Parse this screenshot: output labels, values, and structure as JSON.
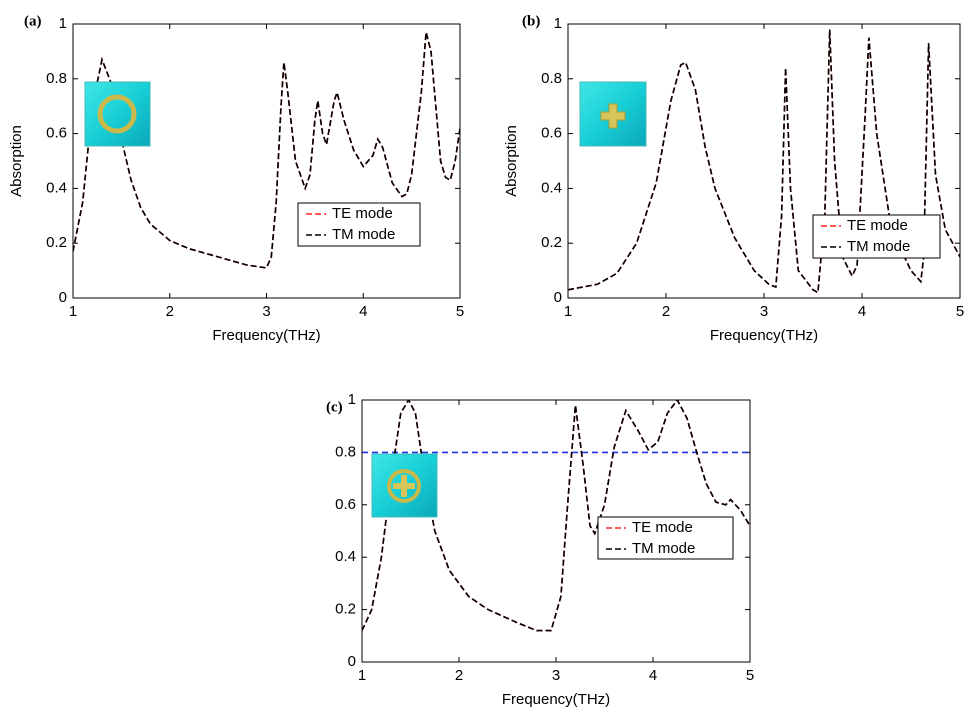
{
  "chart_data": [
    {
      "type": "line",
      "label": "(a)",
      "xlabel": "Frequency(THz)",
      "ylabel": "Absorption",
      "xlim": [
        1,
        5
      ],
      "ylim": [
        0,
        1
      ],
      "xticks": [
        1,
        2,
        3,
        4,
        5
      ],
      "yticks": [
        0,
        0.2,
        0.4,
        0.6,
        0.8,
        1
      ],
      "x": [
        1.0,
        1.1,
        1.2,
        1.3,
        1.4,
        1.5,
        1.6,
        1.7,
        1.8,
        2.0,
        2.2,
        2.5,
        2.8,
        3.0,
        3.05,
        3.1,
        3.15,
        3.18,
        3.22,
        3.3,
        3.4,
        3.45,
        3.5,
        3.53,
        3.58,
        3.62,
        3.7,
        3.73,
        3.8,
        3.9,
        4.0,
        4.1,
        4.15,
        4.2,
        4.3,
        4.4,
        4.45,
        4.5,
        4.6,
        4.65,
        4.7,
        4.8,
        4.85,
        4.9,
        4.95,
        5.0
      ],
      "series": [
        {
          "name": "TE mode",
          "color": "#ff2020",
          "values": [
            0.17,
            0.35,
            0.7,
            0.87,
            0.78,
            0.58,
            0.43,
            0.33,
            0.27,
            0.21,
            0.18,
            0.15,
            0.12,
            0.11,
            0.15,
            0.35,
            0.7,
            0.86,
            0.75,
            0.5,
            0.4,
            0.45,
            0.65,
            0.72,
            0.6,
            0.56,
            0.72,
            0.75,
            0.65,
            0.54,
            0.48,
            0.52,
            0.58,
            0.55,
            0.42,
            0.37,
            0.38,
            0.45,
            0.75,
            0.97,
            0.9,
            0.5,
            0.44,
            0.43,
            0.5,
            0.62
          ]
        },
        {
          "name": "TM mode",
          "color": "#000000",
          "values": [
            0.17,
            0.35,
            0.7,
            0.87,
            0.78,
            0.58,
            0.43,
            0.33,
            0.27,
            0.21,
            0.18,
            0.15,
            0.12,
            0.11,
            0.15,
            0.35,
            0.7,
            0.86,
            0.75,
            0.5,
            0.4,
            0.45,
            0.65,
            0.72,
            0.6,
            0.56,
            0.72,
            0.75,
            0.65,
            0.54,
            0.48,
            0.52,
            0.58,
            0.55,
            0.42,
            0.37,
            0.38,
            0.45,
            0.75,
            0.97,
            0.9,
            0.5,
            0.44,
            0.43,
            0.5,
            0.62
          ]
        }
      ]
    },
    {
      "type": "line",
      "label": "(b)",
      "xlabel": "Frequency(THz)",
      "ylabel": "Absorption",
      "xlim": [
        1,
        5
      ],
      "ylim": [
        0,
        1
      ],
      "xticks": [
        1,
        2,
        3,
        4,
        5
      ],
      "yticks": [
        0,
        0.2,
        0.4,
        0.6,
        0.8,
        1
      ],
      "x": [
        1.0,
        1.3,
        1.5,
        1.7,
        1.9,
        2.05,
        2.15,
        2.2,
        2.3,
        2.4,
        2.5,
        2.7,
        2.9,
        3.05,
        3.12,
        3.18,
        3.22,
        3.27,
        3.35,
        3.5,
        3.55,
        3.62,
        3.67,
        3.72,
        3.8,
        3.9,
        3.95,
        4.03,
        4.07,
        4.15,
        4.3,
        4.5,
        4.6,
        4.63,
        4.68,
        4.75,
        4.85,
        5.0
      ],
      "series": [
        {
          "name": "TE mode",
          "color": "#ff2020",
          "values": [
            0.03,
            0.05,
            0.09,
            0.2,
            0.42,
            0.72,
            0.85,
            0.86,
            0.76,
            0.55,
            0.4,
            0.22,
            0.1,
            0.05,
            0.04,
            0.3,
            0.84,
            0.4,
            0.1,
            0.03,
            0.02,
            0.3,
            0.98,
            0.5,
            0.15,
            0.08,
            0.12,
            0.65,
            0.95,
            0.6,
            0.25,
            0.1,
            0.06,
            0.15,
            0.93,
            0.45,
            0.25,
            0.15
          ]
        },
        {
          "name": "TM mode",
          "color": "#000000",
          "values": [
            0.03,
            0.05,
            0.09,
            0.2,
            0.42,
            0.72,
            0.85,
            0.86,
            0.76,
            0.55,
            0.4,
            0.22,
            0.1,
            0.05,
            0.04,
            0.3,
            0.84,
            0.4,
            0.1,
            0.03,
            0.02,
            0.3,
            0.98,
            0.5,
            0.15,
            0.08,
            0.12,
            0.65,
            0.95,
            0.6,
            0.25,
            0.1,
            0.06,
            0.15,
            0.93,
            0.45,
            0.25,
            0.15
          ]
        }
      ]
    },
    {
      "type": "line",
      "label": "(c)",
      "xlabel": "Frequency(THz)",
      "xlim": [
        1,
        5
      ],
      "ylim": [
        0,
        1
      ],
      "xticks": [
        1,
        2,
        3,
        4,
        5
      ],
      "yticks": [
        0,
        0.2,
        0.4,
        0.6,
        0.8,
        1
      ],
      "reference_line": {
        "value": 0.8,
        "color": "#2233ee"
      },
      "x": [
        1.0,
        1.1,
        1.2,
        1.3,
        1.4,
        1.48,
        1.55,
        1.65,
        1.75,
        1.9,
        2.1,
        2.3,
        2.6,
        2.8,
        2.95,
        3.05,
        3.12,
        3.2,
        3.28,
        3.35,
        3.4,
        3.5,
        3.6,
        3.72,
        3.85,
        3.95,
        4.05,
        4.15,
        4.25,
        4.35,
        4.45,
        4.55,
        4.65,
        4.75,
        4.8,
        4.9,
        5.0
      ],
      "series": [
        {
          "name": "TE mode",
          "color": "#ff2020",
          "values": [
            0.12,
            0.2,
            0.4,
            0.7,
            0.95,
            1.0,
            0.95,
            0.7,
            0.5,
            0.35,
            0.25,
            0.2,
            0.15,
            0.12,
            0.12,
            0.25,
            0.6,
            0.98,
            0.75,
            0.52,
            0.49,
            0.6,
            0.82,
            0.96,
            0.88,
            0.81,
            0.84,
            0.95,
            1.0,
            0.93,
            0.8,
            0.68,
            0.61,
            0.6,
            0.62,
            0.58,
            0.52
          ]
        },
        {
          "name": "TM mode",
          "color": "#000000",
          "values": [
            0.12,
            0.2,
            0.4,
            0.7,
            0.95,
            1.0,
            0.95,
            0.7,
            0.5,
            0.35,
            0.25,
            0.2,
            0.15,
            0.12,
            0.12,
            0.25,
            0.6,
            0.98,
            0.75,
            0.52,
            0.49,
            0.6,
            0.82,
            0.96,
            0.88,
            0.81,
            0.84,
            0.95,
            1.0,
            0.93,
            0.8,
            0.68,
            0.61,
            0.6,
            0.62,
            0.58,
            0.52
          ]
        }
      ]
    }
  ]
}
